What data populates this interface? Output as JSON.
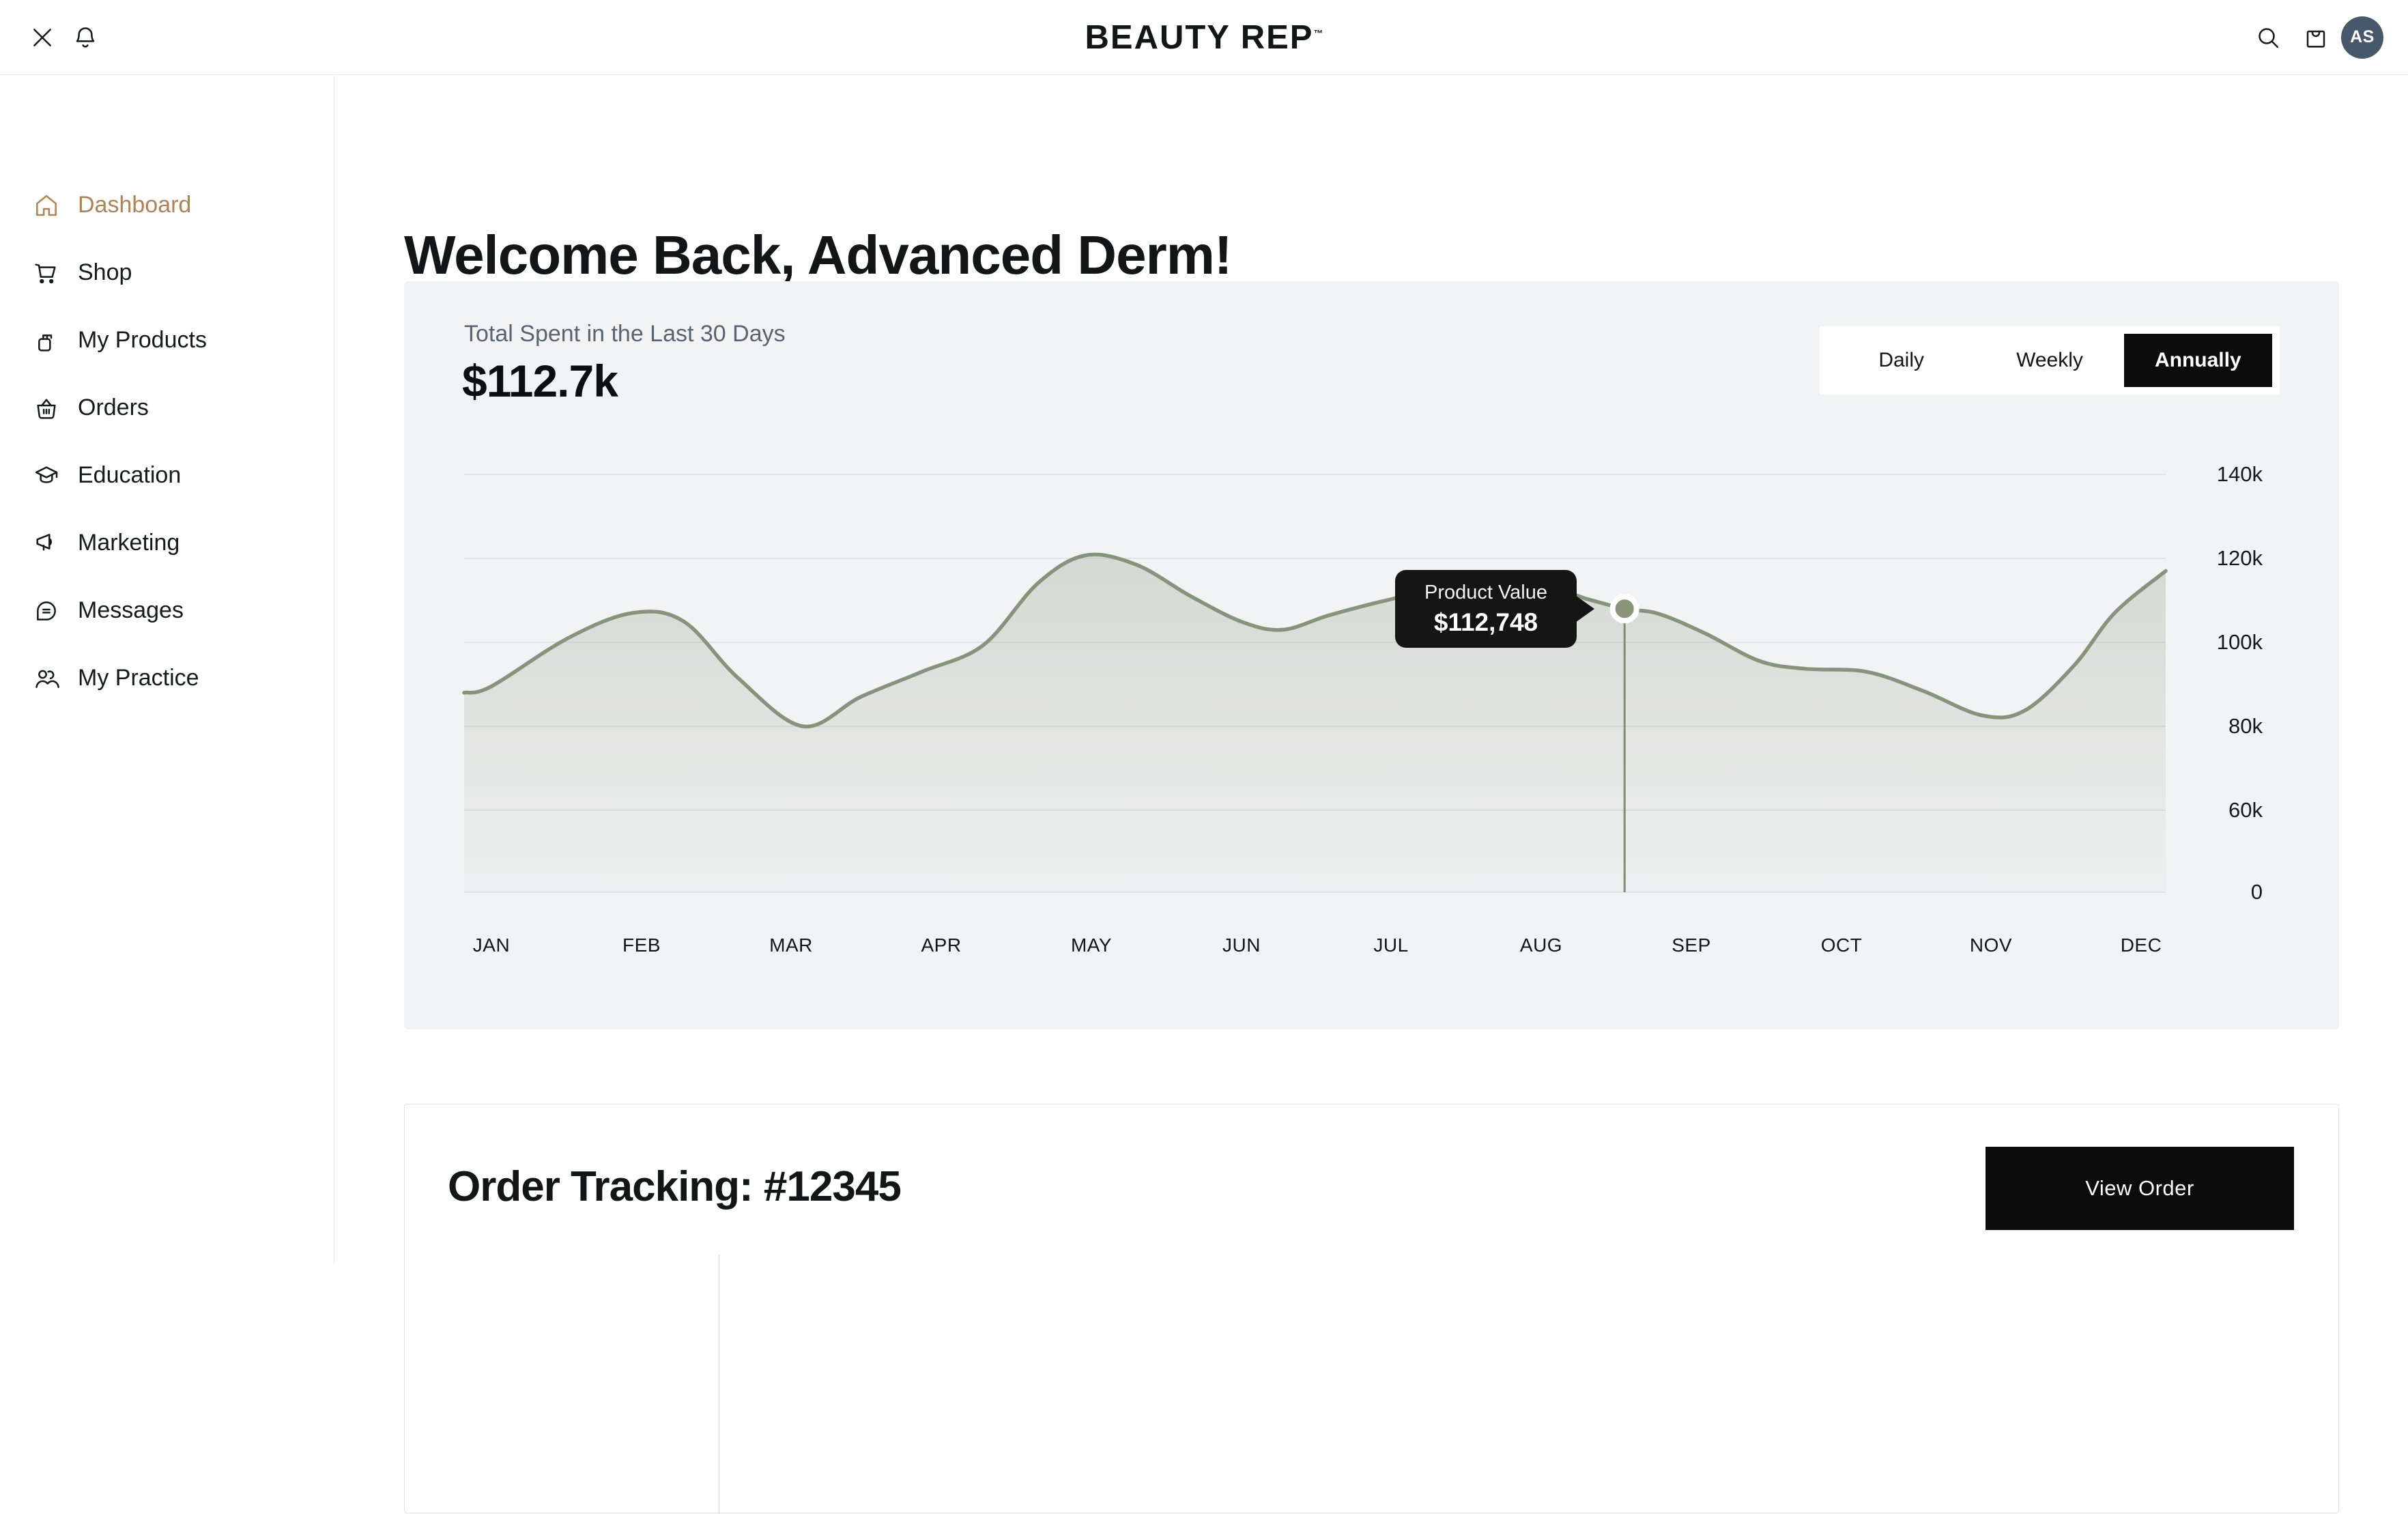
{
  "header": {
    "brand": "BEAUTY REP",
    "brand_tm": "TM",
    "avatar_initials": "AS"
  },
  "sidebar": {
    "items": [
      {
        "label": "Dashboard",
        "icon": "home-icon",
        "active": true
      },
      {
        "label": "Shop",
        "icon": "cart-icon",
        "active": false
      },
      {
        "label": "My Products",
        "icon": "pump-bottle-icon",
        "active": false
      },
      {
        "label": "Orders",
        "icon": "basket-icon",
        "active": false
      },
      {
        "label": "Education",
        "icon": "graduation-cap-icon",
        "active": false
      },
      {
        "label": "Marketing",
        "icon": "megaphone-icon",
        "active": false
      },
      {
        "label": "Messages",
        "icon": "chat-bubble-icon",
        "active": false
      },
      {
        "label": "My Practice",
        "icon": "users-icon",
        "active": false
      }
    ]
  },
  "main": {
    "welcome_heading": "Welcome Back, Advanced Derm!"
  },
  "spend_card": {
    "title": "Total Spent in the Last 30 Days",
    "value": "$112.7k",
    "range_options": [
      "Daily",
      "Weekly",
      "Annually"
    ],
    "active_range": "Annually"
  },
  "chart_data": {
    "type": "area",
    "title": "Total Spent in the Last 30 Days",
    "categories": [
      "JAN",
      "FEB",
      "MAR",
      "APR",
      "MAY",
      "JUN",
      "JUL",
      "AUG",
      "SEP",
      "OCT",
      "NOV",
      "DEC"
    ],
    "values_k": [
      89,
      107,
      81,
      94,
      121,
      105,
      110,
      114,
      104,
      94,
      83,
      116
    ],
    "y_axis": {
      "ticks": [
        {
          "label": "140k",
          "v": 140
        },
        {
          "label": "120k",
          "v": 120
        },
        {
          "label": "100k",
          "v": 100
        },
        {
          "label": "80k",
          "v": 80
        },
        {
          "label": "60k",
          "v": 60
        },
        {
          "label": "0",
          "v": 0
        }
      ],
      "note": "0-to-60k segment is compressed; grid evenly spaced",
      "grid": true
    },
    "curve_points": [
      [
        0.0,
        88
      ],
      [
        0.016,
        89.5
      ],
      [
        0.061,
        101
      ],
      [
        0.099,
        107
      ],
      [
        0.129,
        105
      ],
      [
        0.161,
        91.5
      ],
      [
        0.199,
        80
      ],
      [
        0.233,
        87
      ],
      [
        0.269,
        93
      ],
      [
        0.305,
        99.3
      ],
      [
        0.337,
        114
      ],
      [
        0.365,
        120.7
      ],
      [
        0.395,
        118.5
      ],
      [
        0.427,
        111
      ],
      [
        0.457,
        104.9
      ],
      [
        0.481,
        103
      ],
      [
        0.508,
        106.4
      ],
      [
        0.54,
        109.8
      ],
      [
        0.576,
        112.8
      ],
      [
        0.63,
        113.6
      ],
      [
        0.661,
        110.2
      ],
      [
        0.682,
        108
      ],
      [
        0.702,
        106.8
      ],
      [
        0.729,
        102.2
      ],
      [
        0.761,
        95.6
      ],
      [
        0.788,
        93.7
      ],
      [
        0.824,
        93
      ],
      [
        0.857,
        88.5
      ],
      [
        0.892,
        82.6
      ],
      [
        0.917,
        83.7
      ],
      [
        0.946,
        94.4
      ],
      [
        0.97,
        107
      ],
      [
        1.0,
        117
      ]
    ],
    "highlight": {
      "x_frac": 0.682,
      "dot_value_k": 108,
      "tooltip_label": "Product Value",
      "tooltip_value": "$112,748"
    },
    "legend": "none"
  },
  "order_card": {
    "title": "Order Tracking: #12345",
    "view_order_label": "View Order"
  },
  "colors": {
    "accent_tan": "#b08350",
    "line_sage": "#87947b",
    "fill_sage": "#7c896c",
    "card_bg": "#f1f3f4",
    "grid": "#dcdfe1",
    "tooltip_bg": "#151515",
    "avatar_bg": "#47586b",
    "button_black": "#0c0c0c"
  }
}
